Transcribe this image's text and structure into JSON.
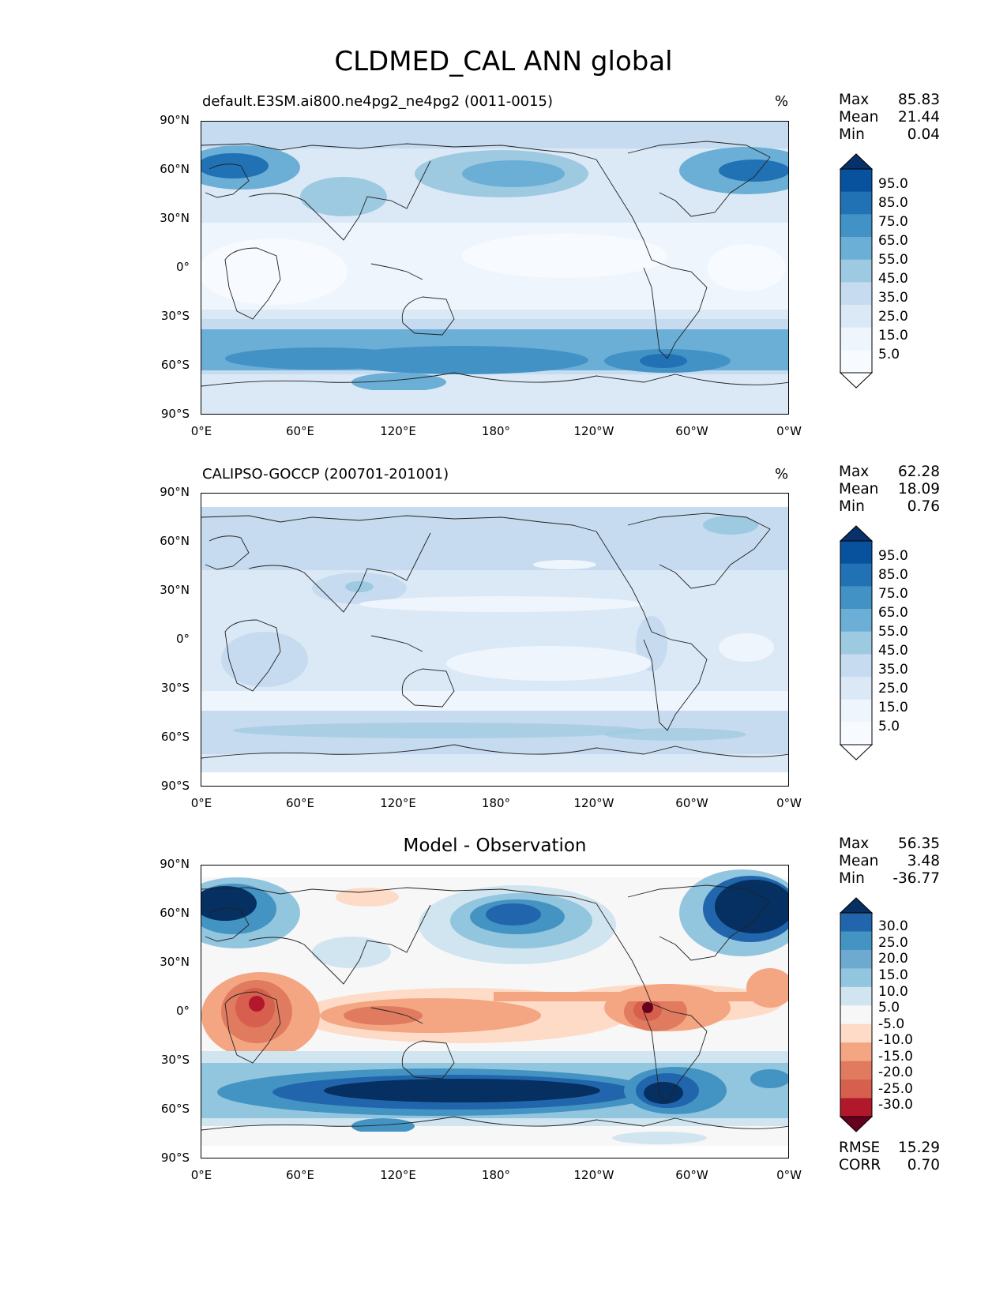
{
  "title": "CLDMED_CAL ANN global",
  "panels": [
    {
      "id": "model",
      "left_label": "default.E3SM.ai800.ne4pg2_ne4pg2 (0011-0015)",
      "unit_label": "%",
      "stats": [
        {
          "name": "Max",
          "value": "85.83"
        },
        {
          "name": "Mean",
          "value": "21.44"
        },
        {
          "name": "Min",
          "value": "0.04"
        }
      ],
      "colorbar": {
        "labels": [
          "95.0",
          "85.0",
          "75.0",
          "65.0",
          "55.0",
          "45.0",
          "35.0",
          "25.0",
          "15.0",
          "5.0"
        ],
        "colors": [
          "#08306b",
          "#08519c",
          "#2171b5",
          "#4292c6",
          "#6baed6",
          "#9ecae1",
          "#c6dbef",
          "#dbe9f6",
          "#eef5fc",
          "#f7fbff",
          "#ffffff"
        ]
      }
    },
    {
      "id": "observation",
      "left_label": "CALIPSO-GOCCP (200701-201001)",
      "unit_label": "%",
      "stats": [
        {
          "name": "Max",
          "value": "62.28"
        },
        {
          "name": "Mean",
          "value": "18.09"
        },
        {
          "name": "Min",
          "value": "0.76"
        }
      ],
      "colorbar": {
        "labels": [
          "95.0",
          "85.0",
          "75.0",
          "65.0",
          "55.0",
          "45.0",
          "35.0",
          "25.0",
          "15.0",
          "5.0"
        ],
        "colors": [
          "#08306b",
          "#08519c",
          "#2171b5",
          "#4292c6",
          "#6baed6",
          "#9ecae1",
          "#c6dbef",
          "#dbe9f6",
          "#eef5fc",
          "#f7fbff",
          "#ffffff"
        ]
      }
    },
    {
      "id": "difference",
      "center_label": "Model - Observation",
      "stats": [
        {
          "name": "Max",
          "value": "56.35"
        },
        {
          "name": "Mean",
          "value": "3.48"
        },
        {
          "name": "Min",
          "value": "-36.77"
        }
      ],
      "bottom_stats": [
        {
          "name": "RMSE",
          "value": "15.29"
        },
        {
          "name": "CORR",
          "value": "0.70"
        }
      ],
      "colorbar": {
        "labels": [
          "30.0",
          "25.0",
          "20.0",
          "15.0",
          "10.0",
          "5.0",
          "-5.0",
          "-10.0",
          "-15.0",
          "-20.0",
          "-25.0",
          "-30.0"
        ],
        "colors": [
          "#053061",
          "#2166ac",
          "#4393c3",
          "#6eaad0",
          "#92c5de",
          "#d1e5f0",
          "#f7f7f7",
          "#fddbc7",
          "#f4a582",
          "#e07b5f",
          "#d6604d",
          "#b2182b",
          "#67001f"
        ]
      }
    }
  ],
  "y_ticks": [
    "90°N",
    "60°N",
    "30°N",
    "0°",
    "30°S",
    "60°S",
    "90°S"
  ],
  "x_ticks": [
    "0°E",
    "60°E",
    "120°E",
    "180°",
    "120°W",
    "60°W",
    "0°W"
  ]
}
